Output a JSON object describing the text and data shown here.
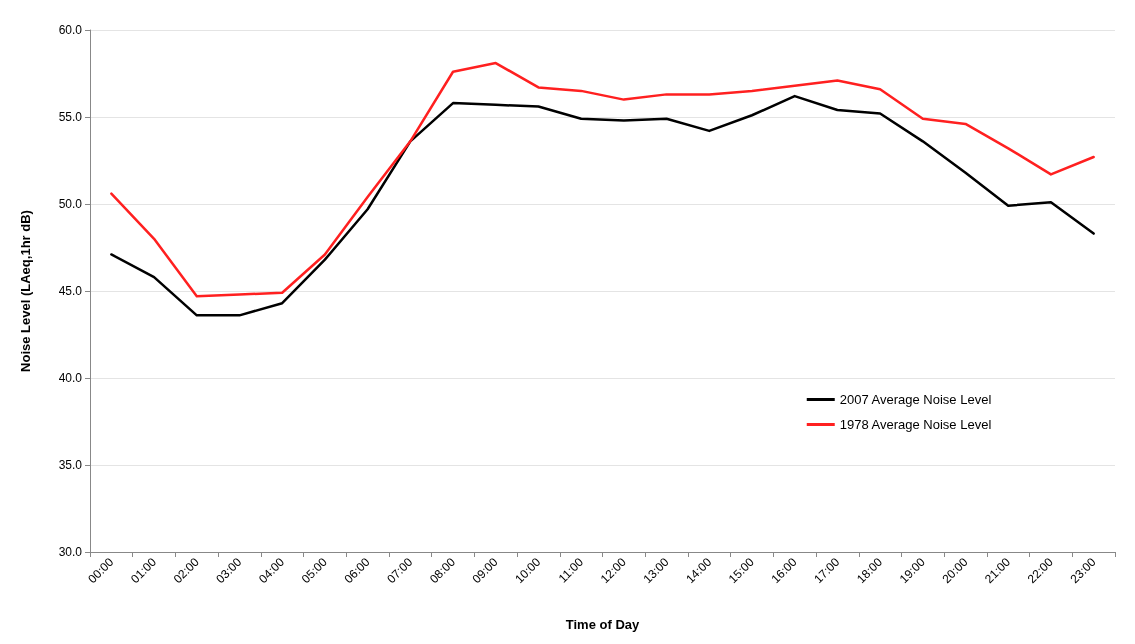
{
  "chart_data": {
    "type": "line",
    "xlabel": "Time of Day",
    "ylabel": "Noise Level (LAeq,1hr dB)",
    "categories": [
      "00:00",
      "01:00",
      "02:00",
      "03:00",
      "04:00",
      "05:00",
      "06:00",
      "07:00",
      "08:00",
      "09:00",
      "10:00",
      "11:00",
      "12:00",
      "13:00",
      "14:00",
      "15:00",
      "16:00",
      "17:00",
      "18:00",
      "19:00",
      "20:00",
      "21:00",
      "22:00",
      "23:00"
    ],
    "series": [
      {
        "name": "2007 Average Noise Level",
        "color": "#000000",
        "values": [
          47.1,
          45.8,
          43.6,
          43.6,
          44.3,
          46.8,
          49.7,
          53.6,
          55.8,
          55.7,
          55.6,
          54.9,
          54.8,
          54.9,
          54.2,
          55.1,
          56.2,
          55.4,
          55.2,
          53.6,
          51.8,
          49.9,
          50.1,
          48.3
        ]
      },
      {
        "name": "1978 Average Noise Level",
        "color": "#ff2020",
        "values": [
          50.6,
          48.0,
          44.7,
          44.8,
          44.9,
          47.1,
          50.4,
          53.6,
          57.6,
          58.1,
          56.7,
          56.5,
          56.0,
          56.3,
          56.3,
          56.5,
          56.8,
          57.1,
          56.6,
          54.9,
          54.6,
          53.2,
          51.7,
          52.7
        ]
      }
    ],
    "ylim": [
      30,
      60
    ],
    "yticks": [
      {
        "value": 30,
        "label": "30.0"
      },
      {
        "value": 35,
        "label": "35.0"
      },
      {
        "value": 40,
        "label": "40.0"
      },
      {
        "value": 45,
        "label": "45.0"
      },
      {
        "value": 50,
        "label": "50.0"
      },
      {
        "value": 55,
        "label": "55.0"
      },
      {
        "value": 60,
        "label": "60.0"
      }
    ],
    "grid": "y",
    "legend": "right",
    "marker": "none",
    "line_style": "solid"
  }
}
